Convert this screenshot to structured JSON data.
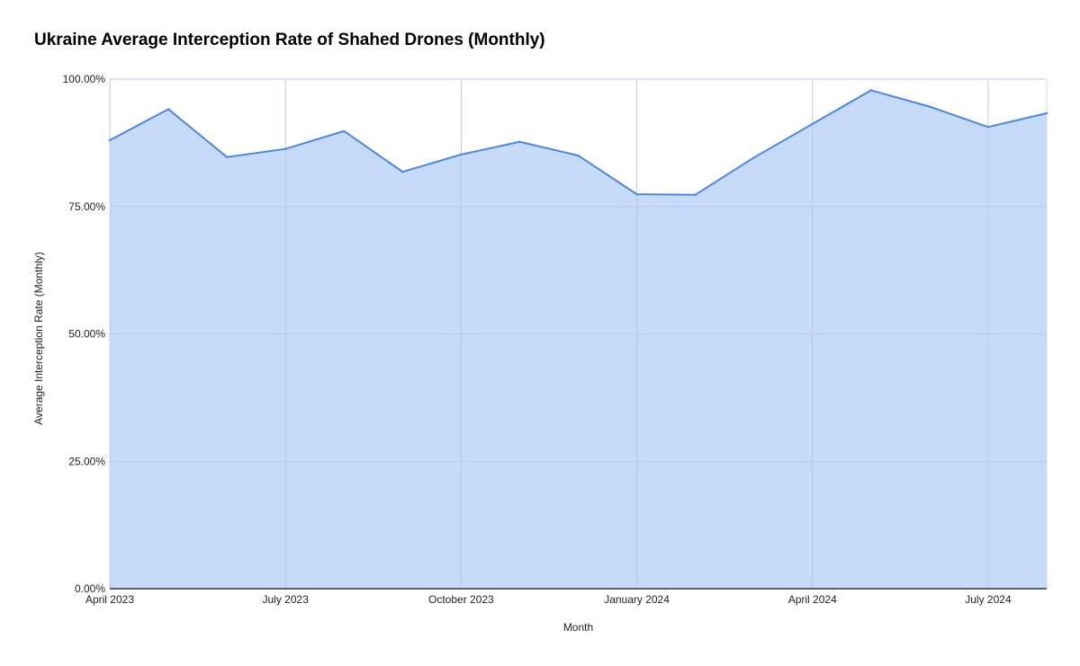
{
  "chart_data": {
    "type": "area",
    "title": "Ukraine Average Interception Rate of Shahed Drones (Monthly)",
    "xlabel": "Month",
    "ylabel": "Average Interception Rate (Monthly)",
    "ylim": [
      0,
      100
    ],
    "y_ticks": [
      0,
      25,
      50,
      75,
      100
    ],
    "y_tick_labels": [
      "0.00%",
      "25.00%",
      "50.00%",
      "75.00%",
      "100.00%"
    ],
    "x_tick_labels": [
      {
        "index": 0,
        "label": "April 2023"
      },
      {
        "index": 3,
        "label": "July 2023"
      },
      {
        "index": 6,
        "label": "October 2023"
      },
      {
        "index": 9,
        "label": "January 2024"
      },
      {
        "index": 12,
        "label": "April 2024"
      },
      {
        "index": 15,
        "label": "July 2024"
      }
    ],
    "x": [
      "2023-04",
      "2023-05",
      "2023-06",
      "2023-07",
      "2023-08",
      "2023-09",
      "2023-10",
      "2023-11",
      "2023-12",
      "2024-01",
      "2024-02",
      "2024-03",
      "2024-04",
      "2024-05",
      "2024-06",
      "2024-07",
      "2024-08"
    ],
    "values": [
      88.0,
      94.1,
      84.7,
      86.3,
      89.8,
      81.8,
      85.2,
      87.7,
      85.0,
      77.4,
      77.3,
      84.6,
      91.2,
      97.8,
      94.6,
      90.6,
      93.3
    ],
    "grid": true,
    "colors": {
      "line": "#4a86e8",
      "fill": "#c6dafa",
      "grid": "#a9bfe8",
      "axis": "#333333"
    }
  }
}
